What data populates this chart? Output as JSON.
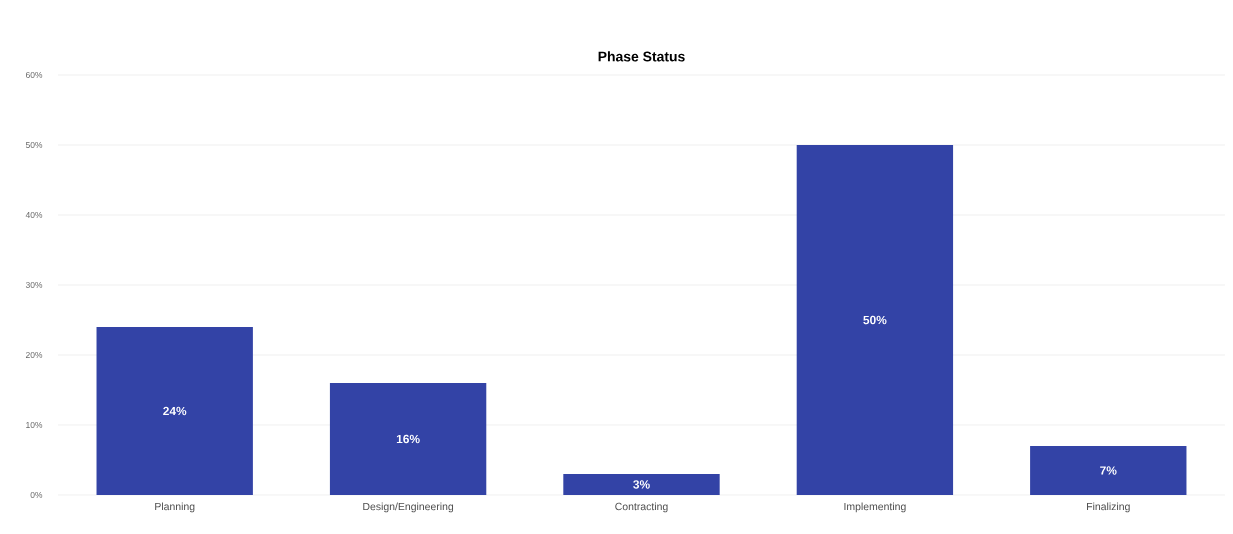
{
  "chart_data": {
    "type": "bar",
    "title": "Phase Status",
    "categories": [
      "Planning",
      "Design/Engineering",
      "Contracting",
      "Implementing",
      "Finalizing"
    ],
    "values": [
      24,
      16,
      3,
      50,
      7
    ],
    "value_labels": [
      "24%",
      "16%",
      "3%",
      "50%",
      "7%"
    ],
    "color": "#3343a6",
    "ylim": [
      0,
      60
    ],
    "yticks": [
      {
        "value": 0,
        "label": "0%"
      },
      {
        "value": 10,
        "label": "10%"
      },
      {
        "value": 20,
        "label": "20%"
      },
      {
        "value": 30,
        "label": "30%"
      },
      {
        "value": 40,
        "label": "40%"
      },
      {
        "value": 50,
        "label": "50%"
      },
      {
        "value": 60,
        "label": "60%"
      }
    ],
    "grid": "y"
  }
}
